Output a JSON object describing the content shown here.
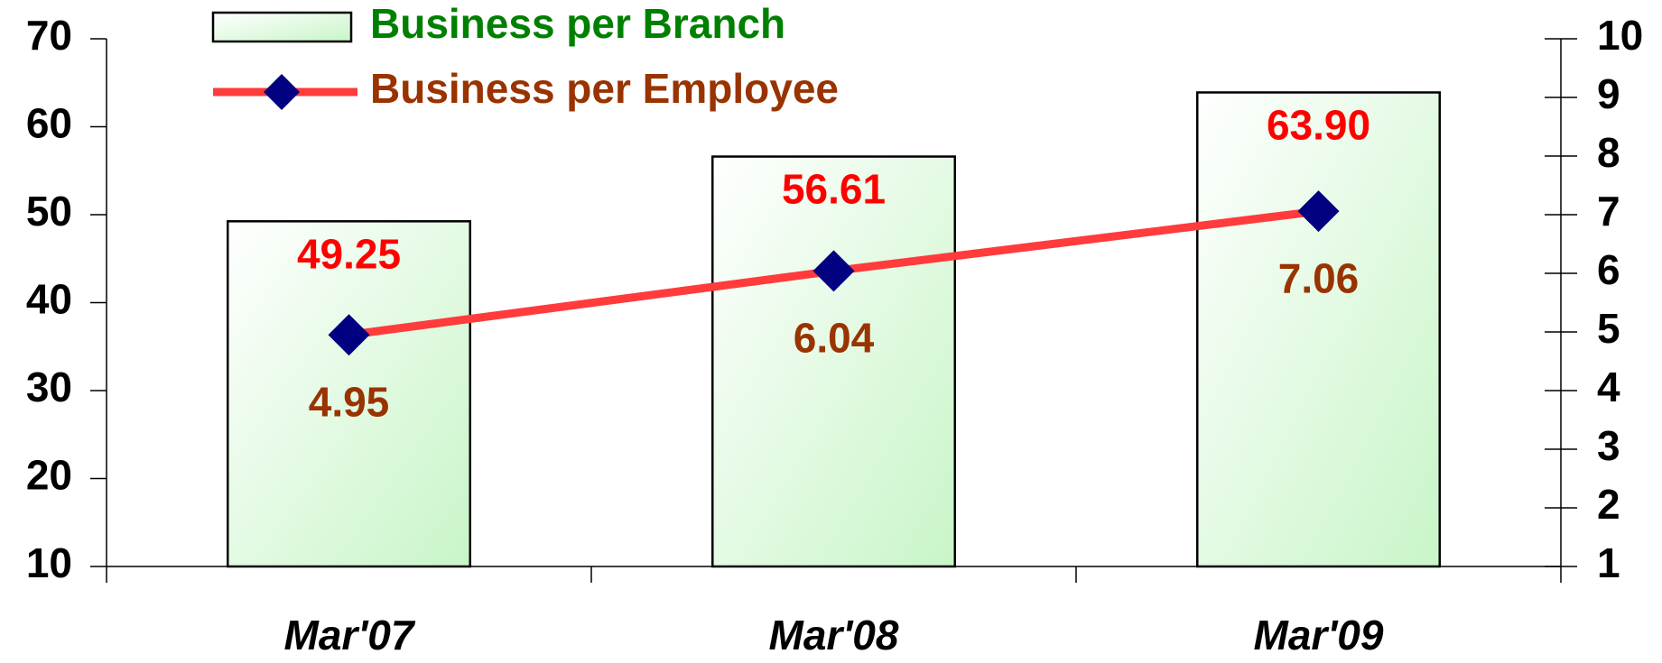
{
  "chart_data": {
    "type": "bar",
    "categories": [
      "Mar'07",
      "Mar'08",
      "Mar'09"
    ],
    "series": [
      {
        "name": "Business per Branch",
        "type": "bar",
        "color": "#c8f5c8",
        "label_color": "#ff0000",
        "legend_color": "#008000",
        "values": [
          49.25,
          56.61,
          63.9
        ],
        "value_labels": [
          "49.25",
          "56.61",
          "63.90"
        ]
      },
      {
        "name": "Business per Employee",
        "type": "line",
        "axis": "y2",
        "color": "#ff3b3b",
        "marker_color": "#000080",
        "label_color": "#993300",
        "legend_color": "#993300",
        "values": [
          4.95,
          6.04,
          7.06
        ]
      }
    ],
    "ylim": [
      10,
      70
    ],
    "yticks": [
      10,
      20,
      30,
      40,
      50,
      60,
      70
    ],
    "y2lim": [
      1,
      10
    ],
    "y2ticks": [
      1,
      2,
      3,
      4,
      5,
      6,
      7,
      8,
      9,
      10
    ],
    "grid": false
  }
}
